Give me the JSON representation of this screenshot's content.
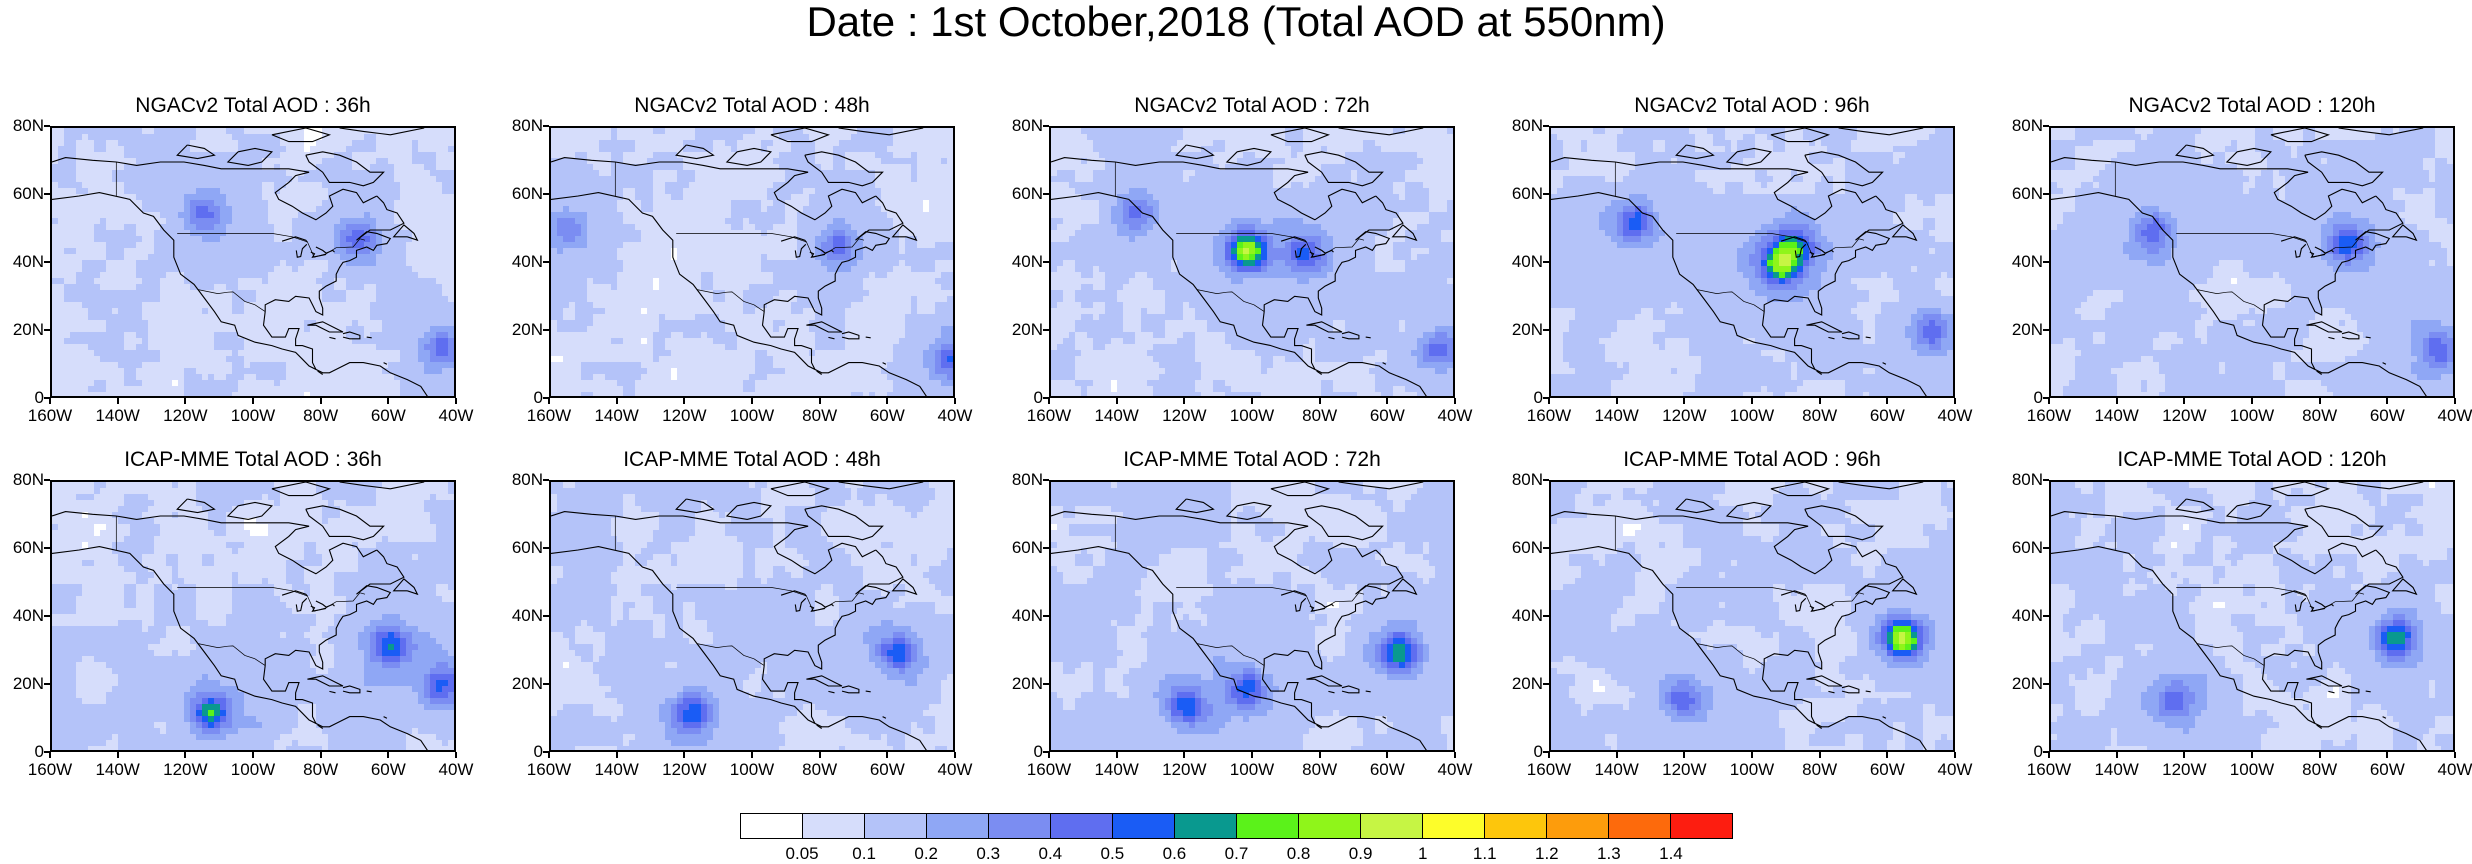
{
  "title": "Date : 1st October,2018 (Total AOD at 550nm)",
  "colors": {
    "bins": [
      "#ffffff",
      "#d6ddfb",
      "#b4c3f9",
      "#8fa7f5",
      "#7b8df2",
      "#5f6ef0",
      "#1a5cf5",
      "#09998f",
      "#5bf21a",
      "#8ff51a",
      "#c6f544",
      "#fdfd2a",
      "#fdc60c",
      "#fd9c0c",
      "#fd6a0c",
      "#fd1d10"
    ],
    "background_haze": "#c9d3fa",
    "coast": "#000000"
  },
  "chart_data": [
    {
      "type": "heatmap",
      "title": "NGACv2 Total AOD : 36h",
      "xlabel": "",
      "ylabel": "",
      "x_ticks": [
        "160W",
        "140W",
        "120W",
        "100W",
        "80W",
        "60W",
        "40W"
      ],
      "y_ticks": [
        "80N",
        "60N",
        "40N",
        "20N",
        "0"
      ],
      "xlim": [
        -160,
        -40
      ],
      "ylim": [
        0,
        80
      ],
      "haze": 0.35,
      "hotspots": [
        {
          "lon": -115,
          "lat": 55,
          "aod": 0.3
        },
        {
          "lon": -70,
          "lat": 47,
          "aod": 0.3
        },
        {
          "lon": -45,
          "lat": 15,
          "aod": 0.3
        }
      ]
    },
    {
      "type": "heatmap",
      "title": "NGACv2 Total AOD : 48h",
      "xlabel": "",
      "ylabel": "",
      "x_ticks": [
        "160W",
        "140W",
        "120W",
        "100W",
        "80W",
        "60W",
        "40W"
      ],
      "y_ticks": [
        "80N",
        "60N",
        "40N",
        "20N",
        "0"
      ],
      "xlim": [
        -160,
        -40
      ],
      "ylim": [
        0,
        80
      ],
      "haze": 0.35,
      "hotspots": [
        {
          "lon": -155,
          "lat": 50,
          "aod": 0.2
        },
        {
          "lon": -75,
          "lat": 45,
          "aod": 0.3
        },
        {
          "lon": -42,
          "lat": 12,
          "aod": 0.3
        }
      ]
    },
    {
      "type": "heatmap",
      "title": "NGACv2 Total AOD : 72h",
      "xlabel": "",
      "ylabel": "",
      "x_ticks": [
        "160W",
        "140W",
        "120W",
        "100W",
        "80W",
        "60W",
        "40W"
      ],
      "y_ticks": [
        "80N",
        "60N",
        "40N",
        "20N",
        "0"
      ],
      "xlim": [
        -160,
        -40
      ],
      "ylim": [
        0,
        80
      ],
      "haze": 0.45,
      "hotspots": [
        {
          "lon": -135,
          "lat": 55,
          "aod": 0.3
        },
        {
          "lon": -102,
          "lat": 44,
          "aod": 0.7
        },
        {
          "lon": -85,
          "lat": 43,
          "aod": 0.4
        },
        {
          "lon": -45,
          "lat": 15,
          "aod": 0.3
        }
      ]
    },
    {
      "type": "heatmap",
      "title": "NGACv2 Total AOD : 96h",
      "xlabel": "",
      "ylabel": "",
      "x_ticks": [
        "160W",
        "140W",
        "120W",
        "100W",
        "80W",
        "60W",
        "40W"
      ],
      "y_ticks": [
        "80N",
        "60N",
        "40N",
        "20N",
        "0"
      ],
      "xlim": [
        -160,
        -40
      ],
      "ylim": [
        0,
        80
      ],
      "haze": 0.5,
      "hotspots": [
        {
          "lon": -135,
          "lat": 52,
          "aod": 0.4
        },
        {
          "lon": -92,
          "lat": 40,
          "aod": 0.6
        },
        {
          "lon": -88,
          "lat": 45,
          "aod": 0.4
        },
        {
          "lon": -47,
          "lat": 20,
          "aod": 0.3
        }
      ]
    },
    {
      "type": "heatmap",
      "title": "NGACv2 Total AOD : 120h",
      "xlabel": "",
      "ylabel": "",
      "x_ticks": [
        "160W",
        "140W",
        "120W",
        "100W",
        "80W",
        "60W",
        "40W"
      ],
      "y_ticks": [
        "80N",
        "60N",
        "40N",
        "20N",
        "0"
      ],
      "xlim": [
        -160,
        -40
      ],
      "ylim": [
        0,
        80
      ],
      "haze": 0.5,
      "hotspots": [
        {
          "lon": -130,
          "lat": 50,
          "aod": 0.3
        },
        {
          "lon": -72,
          "lat": 46,
          "aod": 0.4
        },
        {
          "lon": -45,
          "lat": 15,
          "aod": 0.3
        }
      ]
    },
    {
      "type": "heatmap",
      "title": "ICAP-MME Total AOD : 36h",
      "xlabel": "",
      "ylabel": "",
      "x_ticks": [
        "160W",
        "140W",
        "120W",
        "100W",
        "80W",
        "60W",
        "40W"
      ],
      "y_ticks": [
        "80N",
        "60N",
        "40N",
        "20N",
        "0"
      ],
      "xlim": [
        -160,
        -40
      ],
      "ylim": [
        0,
        80
      ],
      "haze": 0.55,
      "hotspots": [
        {
          "lon": -113,
          "lat": 12,
          "aod": 0.5
        },
        {
          "lon": -60,
          "lat": 32,
          "aod": 0.4
        },
        {
          "lon": -45,
          "lat": 20,
          "aod": 0.3
        }
      ]
    },
    {
      "type": "heatmap",
      "title": "ICAP-MME Total AOD : 48h",
      "xlabel": "",
      "ylabel": "",
      "x_ticks": [
        "160W",
        "140W",
        "120W",
        "100W",
        "80W",
        "60W",
        "40W"
      ],
      "y_ticks": [
        "80N",
        "60N",
        "40N",
        "20N",
        "0"
      ],
      "xlim": [
        -160,
        -40
      ],
      "ylim": [
        0,
        80
      ],
      "haze": 0.55,
      "hotspots": [
        {
          "lon": -118,
          "lat": 12,
          "aod": 0.4
        },
        {
          "lon": -57,
          "lat": 30,
          "aod": 0.4
        }
      ]
    },
    {
      "type": "heatmap",
      "title": "ICAP-MME Total AOD : 72h",
      "xlabel": "",
      "ylabel": "",
      "x_ticks": [
        "160W",
        "140W",
        "120W",
        "100W",
        "80W",
        "60W",
        "40W"
      ],
      "y_ticks": [
        "80N",
        "60N",
        "40N",
        "20N",
        "0"
      ],
      "xlim": [
        -160,
        -40
      ],
      "ylim": [
        0,
        80
      ],
      "haze": 0.55,
      "hotspots": [
        {
          "lon": -120,
          "lat": 14,
          "aod": 0.4
        },
        {
          "lon": -102,
          "lat": 19,
          "aod": 0.4
        },
        {
          "lon": -57,
          "lat": 30,
          "aod": 0.5
        }
      ]
    },
    {
      "type": "heatmap",
      "title": "ICAP-MME Total AOD : 96h",
      "xlabel": "",
      "ylabel": "",
      "x_ticks": [
        "160W",
        "140W",
        "120W",
        "100W",
        "80W",
        "60W",
        "40W"
      ],
      "y_ticks": [
        "80N",
        "60N",
        "40N",
        "20N",
        "0"
      ],
      "xlim": [
        -160,
        -40
      ],
      "ylim": [
        0,
        80
      ],
      "haze": 0.55,
      "hotspots": [
        {
          "lon": -121,
          "lat": 16,
          "aod": 0.3
        },
        {
          "lon": -56,
          "lat": 34,
          "aod": 0.8
        }
      ]
    },
    {
      "type": "heatmap",
      "title": "ICAP-MME Total AOD : 120h",
      "xlabel": "",
      "ylabel": "",
      "x_ticks": [
        "160W",
        "140W",
        "120W",
        "100W",
        "80W",
        "60W",
        "40W"
      ],
      "y_ticks": [
        "80N",
        "60N",
        "40N",
        "20N",
        "0"
      ],
      "xlim": [
        -160,
        -40
      ],
      "ylim": [
        0,
        80
      ],
      "haze": 0.55,
      "hotspots": [
        {
          "lon": -123,
          "lat": 16,
          "aod": 0.3
        },
        {
          "lon": -58,
          "lat": 34,
          "aod": 0.5
        }
      ]
    }
  ],
  "colorbar": {
    "labels": [
      "0.05",
      "0.1",
      "0.2",
      "0.3",
      "0.4",
      "0.5",
      "0.6",
      "0.7",
      "0.8",
      "0.9",
      "1",
      "1.1",
      "1.2",
      "1.3",
      "1.4"
    ]
  }
}
